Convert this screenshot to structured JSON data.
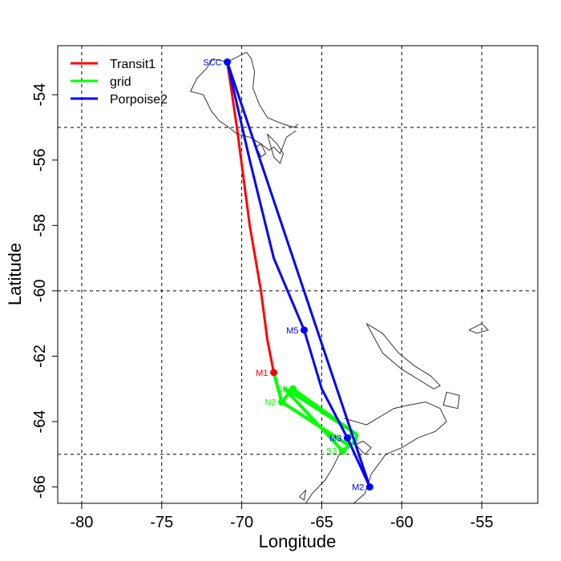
{
  "chart_data": {
    "type": "line",
    "xlabel": "Longitude",
    "ylabel": "Latitude",
    "xlim": [
      -81.5,
      -51.5
    ],
    "ylim": [
      -66.5,
      -52.5
    ],
    "xticks": [
      -80,
      -75,
      -70,
      -65,
      -60,
      -55
    ],
    "yticks": [
      -54,
      -56,
      -58,
      -60,
      -62,
      -64,
      -66
    ],
    "xtick_labels": [
      "-80",
      "-75",
      "-70",
      "-65",
      "-60",
      "-55"
    ],
    "ytick_labels": [
      "-54",
      "-56",
      "-58",
      "-60",
      "-62",
      "-64",
      "-66"
    ],
    "grid_x": [
      -80,
      -75,
      -70,
      -65,
      -60,
      -55
    ],
    "grid_y": [
      -55,
      -60,
      -65
    ],
    "legend_position": "top-left",
    "series": [
      {
        "name": "Transit1",
        "color": "#ff0000",
        "x": [
          -70.9,
          -70.3,
          -69.5,
          -68.8,
          -68.4,
          -68.0
        ],
        "y": [
          -53.0,
          -55.0,
          -58.0,
          -60.0,
          -61.5,
          -62.5
        ]
      },
      {
        "name": "grid",
        "color": "#00ff00",
        "x": [
          -68.0,
          -67.5,
          -66.8,
          -62.8,
          -62.9,
          -63.7,
          -67.3,
          -66.9,
          -63.1,
          -63.4,
          -67.5
        ],
        "y": [
          -62.5,
          -63.4,
          -63.0,
          -64.4,
          -64.6,
          -64.9,
          -63.0,
          -63.1,
          -64.3,
          -64.7,
          -63.4
        ]
      },
      {
        "name": "Porpoise2",
        "color": "#0000ff",
        "x": [
          -70.9,
          -69.5,
          -68.0,
          -66.1,
          -65.0,
          -63.4,
          -62.0,
          -70.9
        ],
        "y": [
          -53.0,
          -56.0,
          -59.0,
          -61.2,
          -63.0,
          -64.5,
          -66.0,
          -53.0
        ]
      }
    ],
    "points": [
      {
        "label": "SCC",
        "x": -70.9,
        "y": -53.0,
        "color": "#0000ff"
      },
      {
        "label": "M5",
        "x": -66.1,
        "y": -61.2,
        "color": "#0000ff"
      },
      {
        "label": "M1",
        "x": -68.0,
        "y": -62.5,
        "color": "#ff0000"
      },
      {
        "label": "N8",
        "x": -66.8,
        "y": -63.0,
        "color": "#00ff00"
      },
      {
        "label": "N2",
        "x": -67.5,
        "y": -63.4,
        "color": "#00ff00"
      },
      {
        "label": "M3",
        "x": -63.4,
        "y": -64.5,
        "color": "#0000ff"
      },
      {
        "label": "S3",
        "x": -63.7,
        "y": -64.9,
        "color": "#00ff00"
      },
      {
        "label": "M2",
        "x": -62.0,
        "y": -66.0,
        "color": "#0000ff"
      }
    ],
    "coastlines": [
      [
        [
          -71.8,
          -52.9
        ],
        [
          -70.9,
          -53.0
        ],
        [
          -70.5,
          -52.9
        ],
        [
          -69.7,
          -52.7
        ],
        [
          -69.4,
          -52.9
        ],
        [
          -69.2,
          -53.3
        ],
        [
          -69.3,
          -53.8
        ],
        [
          -68.9,
          -54.3
        ],
        [
          -68.4,
          -54.7
        ],
        [
          -67.4,
          -54.9
        ],
        [
          -66.7,
          -55.0
        ],
        [
          -66.5,
          -54.9
        ]
      ],
      [
        [
          -71.8,
          -52.9
        ],
        [
          -72.2,
          -53.2
        ],
        [
          -72.8,
          -53.5
        ],
        [
          -73.2,
          -53.9
        ],
        [
          -72.4,
          -54.0
        ],
        [
          -71.9,
          -54.5
        ],
        [
          -71.4,
          -54.8
        ],
        [
          -70.8,
          -55.0
        ],
        [
          -70.3,
          -55.2
        ],
        [
          -69.5,
          -55.3
        ],
        [
          -68.8,
          -55.5
        ],
        [
          -68.3,
          -55.7
        ],
        [
          -68.0,
          -55.6
        ],
        [
          -67.6,
          -55.8
        ],
        [
          -67.2,
          -55.3
        ],
        [
          -66.6,
          -55.1
        ]
      ],
      [
        [
          -68.4,
          -55.2
        ],
        [
          -68.0,
          -55.9
        ],
        [
          -67.6,
          -56.1
        ],
        [
          -67.4,
          -55.8
        ],
        [
          -67.8,
          -55.5
        ],
        [
          -68.4,
          -55.2
        ]
      ],
      [
        [
          -69.1,
          -55.6
        ],
        [
          -68.8,
          -55.9
        ],
        [
          -68.5,
          -55.8
        ],
        [
          -68.8,
          -55.5
        ],
        [
          -69.1,
          -55.6
        ]
      ],
      [
        [
          -62.2,
          -61.0
        ],
        [
          -61.2,
          -61.3
        ],
        [
          -60.2,
          -61.9
        ],
        [
          -59.2,
          -62.3
        ],
        [
          -58.2,
          -62.6
        ],
        [
          -57.6,
          -62.9
        ],
        [
          -58.0,
          -63.0
        ],
        [
          -59.0,
          -62.7
        ],
        [
          -60.0,
          -62.4
        ],
        [
          -61.2,
          -61.9
        ],
        [
          -62.2,
          -61.0
        ]
      ],
      [
        [
          -57.2,
          -63.1
        ],
        [
          -56.4,
          -63.2
        ],
        [
          -56.5,
          -63.6
        ],
        [
          -57.4,
          -63.5
        ],
        [
          -57.2,
          -63.1
        ]
      ],
      [
        [
          -55.8,
          -61.2
        ],
        [
          -55.0,
          -61.0
        ],
        [
          -54.6,
          -61.2
        ],
        [
          -55.3,
          -61.3
        ],
        [
          -55.8,
          -61.2
        ]
      ],
      [
        [
          -63.6,
          -63.9
        ],
        [
          -62.2,
          -64.1
        ],
        [
          -60.5,
          -63.6
        ],
        [
          -59.6,
          -63.5
        ],
        [
          -58.5,
          -63.4
        ],
        [
          -57.6,
          -63.6
        ],
        [
          -57.2,
          -64.0
        ],
        [
          -57.9,
          -64.3
        ],
        [
          -59.0,
          -64.5
        ],
        [
          -60.0,
          -64.8
        ],
        [
          -61.0,
          -65.0
        ],
        [
          -61.9,
          -65.6
        ],
        [
          -62.3,
          -66.2
        ],
        [
          -63.0,
          -66.5
        ]
      ],
      [
        [
          -66.0,
          -66.5
        ],
        [
          -65.6,
          -66.2
        ],
        [
          -64.8,
          -65.8
        ],
        [
          -64.3,
          -65.4
        ],
        [
          -63.9,
          -65.0
        ],
        [
          -63.4,
          -64.8
        ],
        [
          -63.0,
          -64.6
        ]
      ],
      [
        [
          -62.9,
          -64.7
        ],
        [
          -62.4,
          -64.6
        ],
        [
          -61.9,
          -64.8
        ],
        [
          -62.3,
          -65.0
        ],
        [
          -62.9,
          -64.7
        ]
      ],
      [
        [
          -66.4,
          -66.3
        ],
        [
          -66.0,
          -66.1
        ],
        [
          -66.1,
          -66.4
        ],
        [
          -66.4,
          -66.3
        ]
      ]
    ]
  }
}
